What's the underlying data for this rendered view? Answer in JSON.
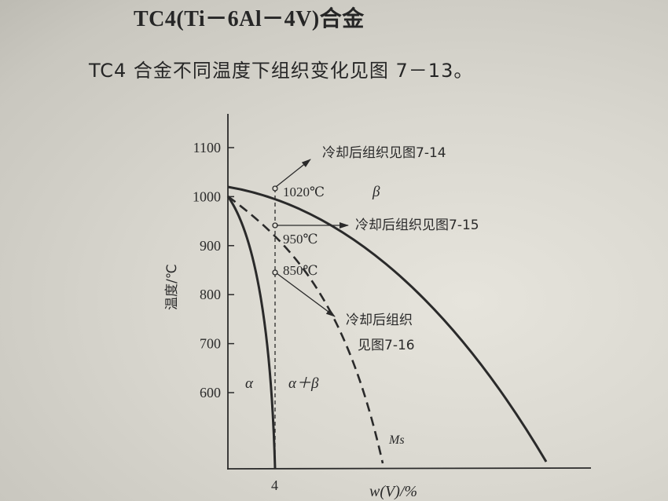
{
  "heading": "TC4(Ti－6Al－4V)合金",
  "sentence": "TC4 合金不同温度下组织变化见图 7－13。",
  "diagram": {
    "y_axis_label": "温度/℃",
    "y_ticks": [
      "1100",
      "1000",
      "900",
      "800",
      "700",
      "600"
    ],
    "x_axis_label": "w(V)/%",
    "x_tick": "4",
    "regions": {
      "alpha": "α",
      "alpha_beta": "α＋β",
      "beta": "β"
    },
    "curve_labels": {
      "ms": "Ms"
    },
    "points": [
      {
        "temp_label": "1020℃",
        "note": "冷却后组织见图7-14"
      },
      {
        "temp_label": "950℃",
        "note": "冷却后组织见图7-15"
      },
      {
        "temp_label": "850℃",
        "note_line1": "冷却后组织",
        "note_line2": "见图7-16"
      }
    ],
    "colors": {
      "ink": "#2a2a2a",
      "paper": "#d9d7cf"
    }
  }
}
